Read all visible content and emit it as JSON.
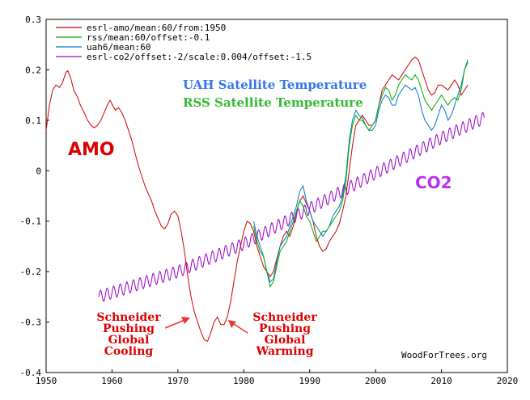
{
  "chart_data": {
    "type": "line",
    "xlim": [
      1950,
      2020
    ],
    "ylim": [
      -0.4,
      0.3
    ],
    "x_ticks": [
      1950,
      1960,
      1970,
      1980,
      1990,
      2000,
      2010,
      2020
    ],
    "y_ticks": [
      0.3,
      0.2,
      0.1,
      0,
      -0.1,
      -0.2,
      -0.3,
      -0.4
    ],
    "x_tick_labels": [
      "1950",
      "1960",
      "1970",
      "1980",
      "1990",
      "2000",
      "2010",
      "2020"
    ],
    "y_tick_labels": [
      "0.3",
      "0.2",
      "0.1",
      "0",
      "-0.1",
      "-0.2",
      "-0.3",
      "-0.4"
    ],
    "grid": false,
    "legend_position": "top-left",
    "series": [
      {
        "name": "esrl-amo/mean:60/from:1950",
        "color": "#cc0000",
        "points": [
          [
            1950.0,
            0.08
          ],
          [
            1950.5,
            0.13
          ],
          [
            1951.0,
            0.16
          ],
          [
            1951.5,
            0.17
          ],
          [
            1952.0,
            0.165
          ],
          [
            1952.5,
            0.175
          ],
          [
            1953.0,
            0.195
          ],
          [
            1953.3,
            0.198
          ],
          [
            1953.7,
            0.185
          ],
          [
            1954.2,
            0.16
          ],
          [
            1954.8,
            0.145
          ],
          [
            1955.2,
            0.13
          ],
          [
            1955.8,
            0.115
          ],
          [
            1956.3,
            0.1
          ],
          [
            1956.8,
            0.09
          ],
          [
            1957.3,
            0.085
          ],
          [
            1957.8,
            0.09
          ],
          [
            1958.3,
            0.1
          ],
          [
            1958.8,
            0.115
          ],
          [
            1959.3,
            0.13
          ],
          [
            1959.7,
            0.14
          ],
          [
            1960.1,
            0.13
          ],
          [
            1960.5,
            0.12
          ],
          [
            1961.0,
            0.125
          ],
          [
            1961.5,
            0.115
          ],
          [
            1962.0,
            0.1
          ],
          [
            1962.5,
            0.08
          ],
          [
            1963.0,
            0.06
          ],
          [
            1963.5,
            0.035
          ],
          [
            1964.0,
            0.01
          ],
          [
            1964.5,
            -0.01
          ],
          [
            1965.0,
            -0.03
          ],
          [
            1965.5,
            -0.045
          ],
          [
            1966.0,
            -0.06
          ],
          [
            1966.5,
            -0.08
          ],
          [
            1967.0,
            -0.095
          ],
          [
            1967.5,
            -0.11
          ],
          [
            1968.0,
            -0.115
          ],
          [
            1968.5,
            -0.105
          ],
          [
            1969.0,
            -0.085
          ],
          [
            1969.5,
            -0.08
          ],
          [
            1970.0,
            -0.09
          ],
          [
            1970.5,
            -0.12
          ],
          [
            1971.0,
            -0.16
          ],
          [
            1971.5,
            -0.21
          ],
          [
            1972.0,
            -0.25
          ],
          [
            1972.5,
            -0.28
          ],
          [
            1973.0,
            -0.3
          ],
          [
            1973.5,
            -0.32
          ],
          [
            1974.0,
            -0.335
          ],
          [
            1974.5,
            -0.338
          ],
          [
            1975.0,
            -0.32
          ],
          [
            1975.5,
            -0.3
          ],
          [
            1976.0,
            -0.29
          ],
          [
            1976.5,
            -0.305
          ],
          [
            1977.0,
            -0.305
          ],
          [
            1977.5,
            -0.29
          ],
          [
            1978.0,
            -0.26
          ],
          [
            1978.5,
            -0.22
          ],
          [
            1979.0,
            -0.18
          ],
          [
            1979.5,
            -0.15
          ],
          [
            1980.0,
            -0.12
          ],
          [
            1980.5,
            -0.1
          ],
          [
            1981.0,
            -0.105
          ],
          [
            1981.5,
            -0.12
          ],
          [
            1982.0,
            -0.15
          ],
          [
            1982.5,
            -0.17
          ],
          [
            1983.0,
            -0.19
          ],
          [
            1983.5,
            -0.2
          ],
          [
            1984.0,
            -0.21
          ],
          [
            1984.5,
            -0.2
          ],
          [
            1985.0,
            -0.175
          ],
          [
            1985.5,
            -0.15
          ],
          [
            1986.0,
            -0.13
          ],
          [
            1986.5,
            -0.12
          ],
          [
            1987.0,
            -0.13
          ],
          [
            1987.5,
            -0.11
          ],
          [
            1988.0,
            -0.08
          ],
          [
            1988.5,
            -0.06
          ],
          [
            1989.0,
            -0.05
          ],
          [
            1989.5,
            -0.065
          ],
          [
            1990.0,
            -0.08
          ],
          [
            1990.5,
            -0.1
          ],
          [
            1991.0,
            -0.13
          ],
          [
            1991.5,
            -0.15
          ],
          [
            1992.0,
            -0.16
          ],
          [
            1992.5,
            -0.155
          ],
          [
            1993.0,
            -0.14
          ],
          [
            1993.5,
            -0.13
          ],
          [
            1994.0,
            -0.12
          ],
          [
            1994.5,
            -0.105
          ],
          [
            1995.0,
            -0.08
          ],
          [
            1995.5,
            -0.05
          ],
          [
            1996.0,
            0.0
          ],
          [
            1996.5,
            0.05
          ],
          [
            1997.0,
            0.09
          ],
          [
            1997.5,
            0.1
          ],
          [
            1998.0,
            0.11
          ],
          [
            1998.5,
            0.1
          ],
          [
            1999.0,
            0.09
          ],
          [
            1999.5,
            0.09
          ],
          [
            2000.0,
            0.1
          ],
          [
            2000.5,
            0.13
          ],
          [
            2001.0,
            0.16
          ],
          [
            2001.5,
            0.17
          ],
          [
            2002.0,
            0.18
          ],
          [
            2002.5,
            0.19
          ],
          [
            2003.0,
            0.185
          ],
          [
            2003.5,
            0.18
          ],
          [
            2004.0,
            0.19
          ],
          [
            2004.5,
            0.2
          ],
          [
            2005.0,
            0.21
          ],
          [
            2005.5,
            0.22
          ],
          [
            2006.0,
            0.225
          ],
          [
            2006.5,
            0.22
          ],
          [
            2007.0,
            0.2
          ],
          [
            2007.5,
            0.18
          ],
          [
            2008.0,
            0.16
          ],
          [
            2008.5,
            0.15
          ],
          [
            2009.0,
            0.155
          ],
          [
            2009.5,
            0.17
          ],
          [
            2010.0,
            0.17
          ],
          [
            2010.5,
            0.165
          ],
          [
            2011.0,
            0.16
          ],
          [
            2011.5,
            0.17
          ],
          [
            2012.0,
            0.18
          ],
          [
            2012.5,
            0.17
          ],
          [
            2013.0,
            0.15
          ],
          [
            2013.5,
            0.16
          ],
          [
            2014.0,
            0.17
          ]
        ]
      },
      {
        "name": "rss/mean:60/offset:-0.1",
        "color": "#00aa00",
        "points": [
          [
            1981.5,
            -0.11
          ],
          [
            1982.0,
            -0.14
          ],
          [
            1982.5,
            -0.16
          ],
          [
            1983.0,
            -0.17
          ],
          [
            1983.5,
            -0.2
          ],
          [
            1984.0,
            -0.23
          ],
          [
            1984.5,
            -0.22
          ],
          [
            1985.0,
            -0.19
          ],
          [
            1985.5,
            -0.16
          ],
          [
            1986.0,
            -0.15
          ],
          [
            1986.5,
            -0.14
          ],
          [
            1987.0,
            -0.12
          ],
          [
            1987.5,
            -0.1
          ],
          [
            1988.0,
            -0.08
          ],
          [
            1988.5,
            -0.06
          ],
          [
            1989.0,
            -0.07
          ],
          [
            1989.5,
            -0.09
          ],
          [
            1990.0,
            -0.1
          ],
          [
            1990.5,
            -0.12
          ],
          [
            1991.0,
            -0.14
          ],
          [
            1991.5,
            -0.13
          ],
          [
            1992.0,
            -0.12
          ],
          [
            1992.5,
            -0.12
          ],
          [
            1993.0,
            -0.11
          ],
          [
            1993.5,
            -0.1
          ],
          [
            1994.0,
            -0.09
          ],
          [
            1994.5,
            -0.08
          ],
          [
            1995.0,
            -0.06
          ],
          [
            1995.5,
            -0.02
          ],
          [
            1996.0,
            0.05
          ],
          [
            1996.5,
            0.09
          ],
          [
            1997.0,
            0.11
          ],
          [
            1997.5,
            0.1
          ],
          [
            1998.0,
            0.1
          ],
          [
            1998.5,
            0.09
          ],
          [
            1999.0,
            0.08
          ],
          [
            1999.5,
            0.09
          ],
          [
            2000.0,
            0.1
          ],
          [
            2000.5,
            0.13
          ],
          [
            2001.0,
            0.15
          ],
          [
            2001.5,
            0.165
          ],
          [
            2002.0,
            0.16
          ],
          [
            2002.5,
            0.14
          ],
          [
            2003.0,
            0.15
          ],
          [
            2003.5,
            0.17
          ],
          [
            2004.0,
            0.18
          ],
          [
            2004.5,
            0.19
          ],
          [
            2005.0,
            0.185
          ],
          [
            2005.5,
            0.18
          ],
          [
            2006.0,
            0.19
          ],
          [
            2006.5,
            0.18
          ],
          [
            2007.0,
            0.16
          ],
          [
            2007.5,
            0.14
          ],
          [
            2008.0,
            0.13
          ],
          [
            2008.5,
            0.12
          ],
          [
            2009.0,
            0.13
          ],
          [
            2009.5,
            0.14
          ],
          [
            2010.0,
            0.15
          ],
          [
            2010.5,
            0.14
          ],
          [
            2011.0,
            0.13
          ],
          [
            2011.5,
            0.14
          ],
          [
            2012.0,
            0.145
          ],
          [
            2012.5,
            0.14
          ],
          [
            2013.0,
            0.16
          ],
          [
            2013.5,
            0.2
          ],
          [
            2014.0,
            0.22
          ]
        ]
      },
      {
        "name": "uah6/mean:60",
        "color": "#0077cc",
        "points": [
          [
            1981.5,
            -0.1
          ],
          [
            1982.0,
            -0.13
          ],
          [
            1982.5,
            -0.15
          ],
          [
            1983.0,
            -0.17
          ],
          [
            1983.5,
            -0.2
          ],
          [
            1984.0,
            -0.22
          ],
          [
            1984.5,
            -0.215
          ],
          [
            1985.0,
            -0.18
          ],
          [
            1985.5,
            -0.15
          ],
          [
            1986.0,
            -0.14
          ],
          [
            1986.5,
            -0.13
          ],
          [
            1987.0,
            -0.11
          ],
          [
            1987.5,
            -0.09
          ],
          [
            1988.0,
            -0.07
          ],
          [
            1988.5,
            -0.04
          ],
          [
            1989.0,
            -0.03
          ],
          [
            1989.5,
            -0.06
          ],
          [
            1990.0,
            -0.08
          ],
          [
            1990.5,
            -0.1
          ],
          [
            1991.0,
            -0.11
          ],
          [
            1991.5,
            -0.12
          ],
          [
            1992.0,
            -0.13
          ],
          [
            1992.5,
            -0.12
          ],
          [
            1993.0,
            -0.11
          ],
          [
            1993.5,
            -0.09
          ],
          [
            1994.0,
            -0.08
          ],
          [
            1994.5,
            -0.07
          ],
          [
            1995.0,
            -0.05
          ],
          [
            1995.5,
            -0.01
          ],
          [
            1996.0,
            0.06
          ],
          [
            1996.5,
            0.1
          ],
          [
            1997.0,
            0.12
          ],
          [
            1997.5,
            0.11
          ],
          [
            1998.0,
            0.105
          ],
          [
            1998.5,
            0.09
          ],
          [
            1999.0,
            0.08
          ],
          [
            1999.5,
            0.08
          ],
          [
            2000.0,
            0.09
          ],
          [
            2000.5,
            0.12
          ],
          [
            2001.0,
            0.14
          ],
          [
            2001.5,
            0.15
          ],
          [
            2002.0,
            0.145
          ],
          [
            2002.5,
            0.13
          ],
          [
            2003.0,
            0.13
          ],
          [
            2003.5,
            0.15
          ],
          [
            2004.0,
            0.16
          ],
          [
            2004.5,
            0.17
          ],
          [
            2005.0,
            0.165
          ],
          [
            2005.5,
            0.16
          ],
          [
            2006.0,
            0.165
          ],
          [
            2006.5,
            0.15
          ],
          [
            2007.0,
            0.12
          ],
          [
            2007.5,
            0.1
          ],
          [
            2008.0,
            0.09
          ],
          [
            2008.5,
            0.08
          ],
          [
            2009.0,
            0.09
          ],
          [
            2009.5,
            0.11
          ],
          [
            2010.0,
            0.13
          ],
          [
            2010.5,
            0.12
          ],
          [
            2011.0,
            0.1
          ],
          [
            2011.5,
            0.11
          ],
          [
            2012.0,
            0.13
          ],
          [
            2012.5,
            0.15
          ],
          [
            2013.0,
            0.17
          ],
          [
            2013.5,
            0.2
          ],
          [
            2014.0,
            0.215
          ]
        ]
      },
      {
        "name": "esrl-co2/offset:-2/scale:0.004/offset:-1.5",
        "color": "#9900cc",
        "seasonal": true,
        "x_start": 1958.0,
        "x_end": 2016.5,
        "trend": [
          [
            1958.0,
            -0.25
          ],
          [
            1970.0,
            -0.2
          ],
          [
            1980.0,
            -0.145
          ],
          [
            1990.0,
            -0.075
          ],
          [
            2000.0,
            -0.005
          ],
          [
            2010.0,
            0.065
          ],
          [
            2016.5,
            0.105
          ]
        ],
        "seasonal_amplitude": 0.012
      }
    ]
  },
  "annotations": {
    "amo": "AMO",
    "co2": "CO2",
    "uah": "UAH Satellite Temperature",
    "rss": "RSS Satellite Temperature",
    "cooling_lines": [
      "Schneider",
      "Pushing",
      "Global",
      "Cooling"
    ],
    "warming_lines": [
      "Schneider",
      "Pushing",
      "Global",
      "Warming"
    ],
    "credit": "WoodForTrees.org"
  },
  "colors": {
    "amo_text": "#dd0000",
    "co2_text": "#bb33ee",
    "uah_text": "#3377ee",
    "rss_text": "#33bb33",
    "arrow": "#ee3333"
  }
}
